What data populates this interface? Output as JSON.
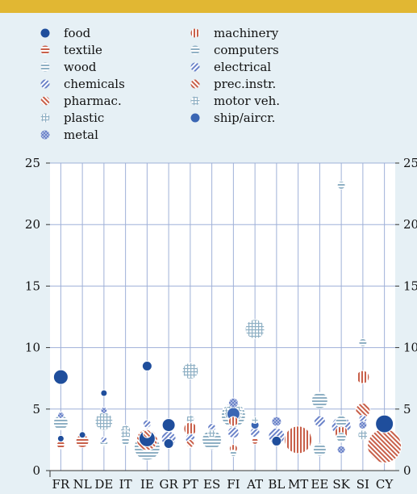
{
  "chart_data": {
    "type": "scatter",
    "title": "",
    "xlabel": "",
    "ylabel": "",
    "ylim": [
      0,
      25
    ],
    "yticks": [
      0,
      5,
      10,
      15,
      20,
      25
    ],
    "grid": true,
    "legend_placement": "top",
    "categories": [
      "FR",
      "NL",
      "DE",
      "IT",
      "IE",
      "GR",
      "PT",
      "ES",
      "FI",
      "AT",
      "BL",
      "MT",
      "EE",
      "SK",
      "SI",
      "CY"
    ],
    "series": [
      {
        "name": "food",
        "pattern": "solid",
        "color": "#1f4e9c",
        "points": [
          [
            "FR",
            7.6,
            9
          ],
          [
            "FR",
            2.6,
            4
          ],
          [
            "NL",
            2.9,
            4
          ],
          [
            "DE",
            6.3,
            4
          ],
          [
            "IE",
            8.5,
            6
          ],
          [
            "IE",
            2.6,
            10
          ],
          [
            "GR",
            3.7,
            8
          ],
          [
            "GR",
            2.2,
            6
          ],
          [
            "BL",
            2.4,
            6
          ],
          [
            "CY",
            3.8,
            11
          ]
        ]
      },
      {
        "name": "textile",
        "pattern": "hstripe",
        "color": "#c8604a",
        "points": [
          [
            "FR",
            2.1,
            5
          ],
          [
            "NL",
            2.4,
            8
          ],
          [
            "AT",
            2.4,
            4
          ]
        ]
      },
      {
        "name": "wood",
        "pattern": "hstripe",
        "color": "#8fb0c4",
        "points": [
          [
            "FR",
            3.9,
            9
          ],
          [
            "IE",
            1.9,
            16
          ],
          [
            "ES",
            2.5,
            12
          ],
          [
            "FI",
            4.5,
            15
          ],
          [
            "EE",
            5.7,
            10
          ],
          [
            "EE",
            1.7,
            8
          ],
          [
            "SK",
            23.2,
            5
          ],
          [
            "SK",
            2.7,
            6
          ]
        ]
      },
      {
        "name": "chemicals",
        "pattern": "diag",
        "color": "#6b83c9",
        "points": [
          [
            "IE",
            3.8,
            5
          ],
          [
            "FI",
            3.1,
            7
          ],
          [
            "AT",
            3.1,
            6
          ],
          [
            "BL",
            2.8,
            10
          ],
          [
            "EE",
            4.0,
            7
          ],
          [
            "SI",
            4.2,
            5
          ]
        ]
      },
      {
        "name": "pharmac.",
        "pattern": "diag2",
        "color": "#c8604a",
        "points": [
          [
            "IE",
            2.5,
            13
          ],
          [
            "SI",
            4.9,
            9
          ],
          [
            "CY",
            2.0,
            21
          ]
        ]
      },
      {
        "name": "plastic",
        "pattern": "grid",
        "color": "#8fb0c4",
        "points": [
          [
            "IT",
            3.3,
            6
          ],
          [
            "PT",
            4.2,
            5
          ],
          [
            "SI",
            2.9,
            6
          ]
        ]
      },
      {
        "name": "metal",
        "pattern": "dots",
        "color": "#6b83c9",
        "points": [
          [
            "FR",
            4.5,
            4
          ],
          [
            "DE",
            4.9,
            4
          ],
          [
            "FI",
            5.5,
            6
          ],
          [
            "BL",
            4.0,
            6
          ],
          [
            "SK",
            1.7,
            5
          ],
          [
            "SI",
            3.7,
            5
          ]
        ]
      },
      {
        "name": "machinery",
        "pattern": "vstripe",
        "color": "#c8604a",
        "points": [
          [
            "PT",
            3.4,
            8
          ],
          [
            "FI",
            4.0,
            6
          ],
          [
            "FI",
            1.8,
            5
          ],
          [
            "MT",
            2.5,
            17
          ],
          [
            "SK",
            3.1,
            8
          ],
          [
            "SI",
            7.6,
            8
          ]
        ]
      },
      {
        "name": "computers",
        "pattern": "hstripe",
        "color": "#8fb0c4",
        "points": [
          [
            "DE",
            2.3,
            5
          ],
          [
            "IT",
            2.4,
            5
          ],
          [
            "FI",
            1.4,
            4
          ],
          [
            "SK",
            4.0,
            7
          ],
          [
            "SI",
            10.4,
            5
          ]
        ]
      },
      {
        "name": "electrical",
        "pattern": "diag",
        "color": "#6b83c9",
        "points": [
          [
            "DE",
            2.5,
            4
          ],
          [
            "GR",
            2.6,
            9
          ],
          [
            "PT",
            2.6,
            6
          ],
          [
            "ES",
            3.5,
            5
          ],
          [
            "SK",
            3.6,
            12
          ]
        ]
      },
      {
        "name": "prec.instr.",
        "pattern": "diag2",
        "color": "#c8604a",
        "points": [
          [
            "IE",
            3.0,
            5
          ],
          [
            "PT",
            2.2,
            5
          ]
        ]
      },
      {
        "name": "motor veh.",
        "pattern": "grid",
        "color": "#8fb0c4",
        "points": [
          [
            "DE",
            4.0,
            11
          ],
          [
            "IT",
            2.9,
            6
          ],
          [
            "PT",
            8.1,
            10
          ],
          [
            "ES",
            3.0,
            5
          ],
          [
            "FI",
            4.7,
            11
          ],
          [
            "AT",
            11.5,
            12
          ],
          [
            "AT",
            4.1,
            4
          ]
        ]
      },
      {
        "name": "ship/aircr.",
        "pattern": "solid",
        "color": "#3a66b4",
        "points": [
          [
            "FI",
            4.6,
            8
          ],
          [
            "AT",
            3.7,
            5
          ]
        ]
      }
    ]
  }
}
